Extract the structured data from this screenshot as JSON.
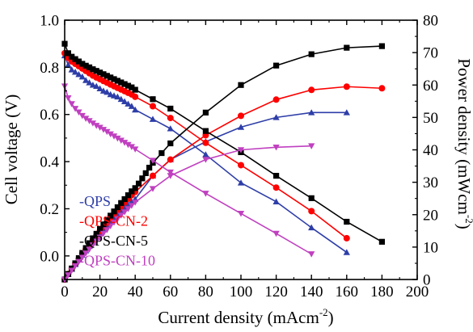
{
  "chart_data": {
    "type": "line",
    "xlabel": "Current density (mAcm",
    "xlabel_sup": "-2",
    "xlabel_tail": ")",
    "ylabel": "Cell voltage (V)",
    "y2label": "Power density (mWcm",
    "y2label_sup": "-2",
    "y2label_tail": ")",
    "xlim": [
      0,
      200
    ],
    "ylim": [
      -0.1,
      1.0
    ],
    "y2lim": [
      0,
      80
    ],
    "xticks": [
      "0",
      "20",
      "40",
      "60",
      "80",
      "100",
      "120",
      "140",
      "160",
      "180",
      "200"
    ],
    "yticks": [
      "0.0",
      "0.2",
      "0.4",
      "0.6",
      "0.8",
      "1.0"
    ],
    "y2ticks": [
      "0",
      "10",
      "20",
      "30",
      "40",
      "50",
      "60",
      "70",
      "80"
    ],
    "legend_position": "bottom-left",
    "series": [
      {
        "name": "-QPS",
        "color": "#2e3ea8",
        "marker": "triangle",
        "voltage": {
          "x": [
            0,
            2,
            4,
            6,
            8,
            10,
            12,
            14,
            16,
            18,
            20,
            22,
            24,
            26,
            28,
            30,
            32,
            34,
            36,
            38,
            40,
            50,
            60,
            80,
            100,
            120,
            140,
            160
          ],
          "y": [
            0.85,
            0.81,
            0.79,
            0.78,
            0.77,
            0.76,
            0.745,
            0.735,
            0.725,
            0.72,
            0.71,
            0.7,
            0.695,
            0.685,
            0.68,
            0.675,
            0.665,
            0.655,
            0.645,
            0.635,
            0.62,
            0.58,
            0.54,
            0.43,
            0.31,
            0.23,
            0.12,
            0.015
          ]
        },
        "power": {
          "x": [
            0,
            2,
            4,
            6,
            8,
            10,
            12,
            14,
            16,
            18,
            20,
            22,
            24,
            26,
            28,
            30,
            32,
            34,
            36,
            38,
            40,
            50,
            60,
            80,
            100,
            120,
            140,
            160
          ],
          "y": [
            0,
            1.6,
            3.2,
            4.7,
            6.2,
            7.6,
            8.9,
            10.3,
            11.6,
            13.0,
            14.2,
            15.4,
            16.7,
            17.8,
            19.0,
            20.3,
            21.3,
            22.3,
            23.2,
            24.1,
            24.8,
            32.0,
            37.0,
            42.5,
            47.0,
            50.0,
            51.5,
            51.5
          ]
        }
      },
      {
        "name": "-QPS-CN-2",
        "color": "#ff0000",
        "marker": "circle",
        "voltage": {
          "x": [
            0,
            2,
            4,
            6,
            8,
            10,
            12,
            14,
            16,
            18,
            20,
            22,
            24,
            26,
            28,
            30,
            32,
            34,
            36,
            38,
            40,
            50,
            60,
            80,
            100,
            120,
            140,
            160
          ],
          "y": [
            0.86,
            0.84,
            0.825,
            0.815,
            0.805,
            0.795,
            0.785,
            0.775,
            0.765,
            0.757,
            0.75,
            0.742,
            0.735,
            0.727,
            0.72,
            0.713,
            0.706,
            0.699,
            0.692,
            0.685,
            0.675,
            0.635,
            0.585,
            0.48,
            0.385,
            0.29,
            0.19,
            0.075
          ]
        },
        "power": {
          "x": [
            0,
            2,
            4,
            6,
            8,
            10,
            12,
            14,
            16,
            18,
            20,
            22,
            24,
            26,
            28,
            30,
            32,
            34,
            36,
            38,
            40,
            50,
            60,
            80,
            100,
            120,
            140,
            160,
            180
          ],
          "y": [
            0,
            1.7,
            3.3,
            4.9,
            6.4,
            8.0,
            9.4,
            10.9,
            12.3,
            13.6,
            15.0,
            16.3,
            17.6,
            18.9,
            20.2,
            21.4,
            22.6,
            23.8,
            24.9,
            26.0,
            27.0,
            32.0,
            37.0,
            44.5,
            50.5,
            55.5,
            58.5,
            59.5,
            59.0
          ]
        }
      },
      {
        "name": "-QPS-CN-5",
        "color": "#000000",
        "marker": "square",
        "voltage": {
          "x": [
            0,
            2,
            4,
            6,
            8,
            10,
            12,
            14,
            16,
            18,
            20,
            22,
            24,
            26,
            28,
            30,
            32,
            34,
            36,
            38,
            40,
            50,
            60,
            80,
            100,
            120,
            140,
            160,
            180
          ],
          "y": [
            0.9,
            0.86,
            0.845,
            0.835,
            0.825,
            0.815,
            0.807,
            0.8,
            0.792,
            0.785,
            0.778,
            0.771,
            0.764,
            0.757,
            0.75,
            0.743,
            0.736,
            0.729,
            0.722,
            0.715,
            0.705,
            0.665,
            0.625,
            0.53,
            0.44,
            0.34,
            0.245,
            0.145,
            0.06
          ]
        },
        "power": {
          "x": [
            0,
            2,
            4,
            6,
            8,
            10,
            12,
            14,
            16,
            18,
            20,
            22,
            24,
            26,
            28,
            30,
            32,
            34,
            36,
            38,
            40,
            42,
            44,
            46,
            48,
            50,
            55,
            60,
            80,
            100,
            120,
            140,
            160,
            180
          ],
          "y": [
            0,
            1.7,
            3.4,
            5.0,
            6.6,
            8.2,
            9.7,
            11.2,
            12.7,
            14.1,
            15.6,
            17.0,
            18.3,
            19.7,
            21.0,
            22.3,
            23.6,
            24.8,
            26.0,
            27.2,
            28.2,
            29.6,
            31.2,
            32.8,
            34.5,
            36.0,
            39.0,
            42.0,
            51.5,
            60.0,
            66.0,
            69.5,
            71.5,
            72.0
          ]
        }
      },
      {
        "name": "-QPS-CN-10",
        "color": "#c040c0",
        "marker": "inverted-triangle",
        "voltage": {
          "x": [
            0,
            2,
            4,
            6,
            8,
            10,
            12,
            14,
            16,
            18,
            20,
            22,
            24,
            26,
            28,
            30,
            32,
            34,
            36,
            38,
            40,
            50,
            60,
            80,
            100,
            120,
            140
          ],
          "y": [
            0.72,
            0.67,
            0.645,
            0.625,
            0.61,
            0.595,
            0.583,
            0.573,
            0.563,
            0.553,
            0.545,
            0.536,
            0.527,
            0.517,
            0.508,
            0.499,
            0.49,
            0.481,
            0.472,
            0.463,
            0.453,
            0.405,
            0.355,
            0.265,
            0.18,
            0.095,
            0.008
          ]
        },
        "power": {
          "x": [
            0,
            2,
            4,
            6,
            8,
            10,
            12,
            14,
            16,
            18,
            20,
            22,
            24,
            26,
            28,
            30,
            32,
            34,
            36,
            38,
            40,
            50,
            60,
            80,
            100,
            120,
            140
          ],
          "y": [
            0,
            1.4,
            2.8,
            4.2,
            5.5,
            6.8,
            8.1,
            9.3,
            10.6,
            11.8,
            13.0,
            14.2,
            15.3,
            16.5,
            17.6,
            18.7,
            19.8,
            20.8,
            21.8,
            22.8,
            23.8,
            28.0,
            32.0,
            37.0,
            40.0,
            40.8,
            41.2
          ]
        }
      }
    ]
  }
}
